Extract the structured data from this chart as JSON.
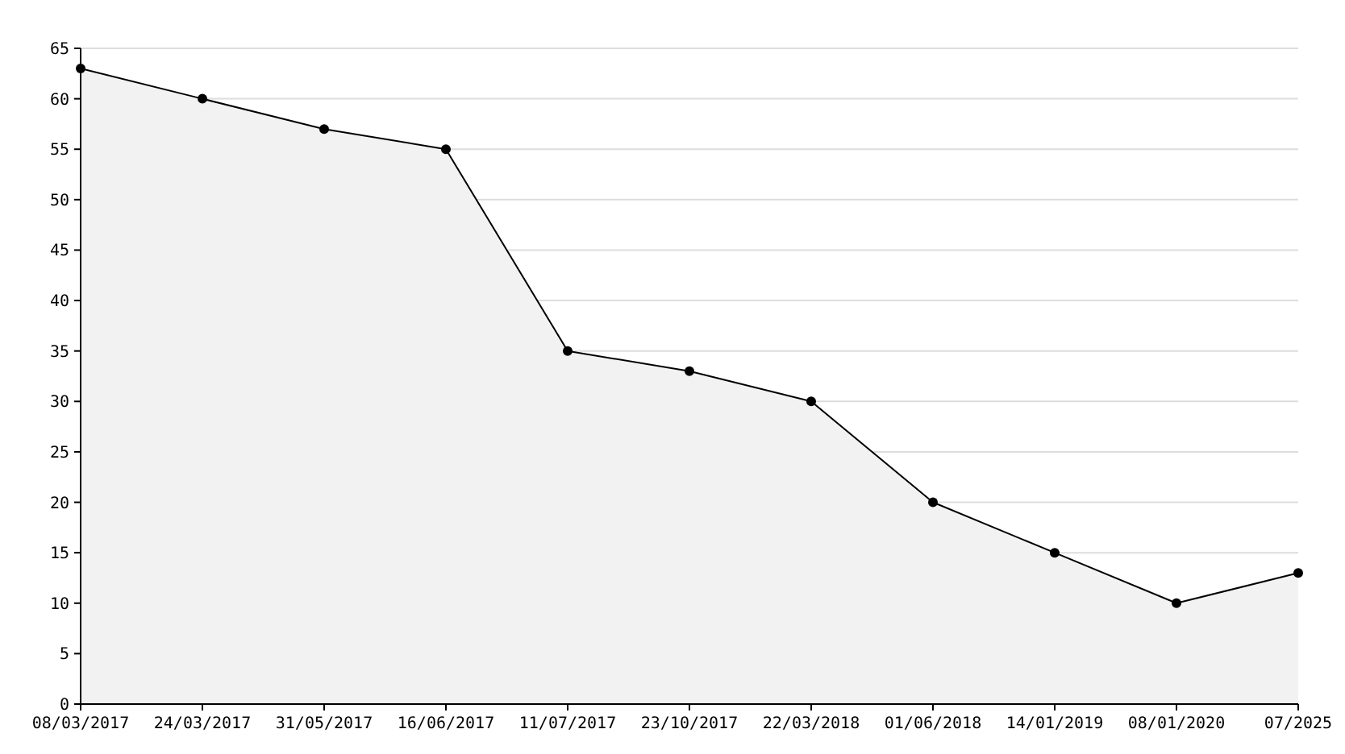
{
  "chart_data": {
    "type": "area",
    "categories": [
      "08/03/2017",
      "24/03/2017",
      "31/05/2017",
      "16/06/2017",
      "11/07/2017",
      "23/10/2017",
      "22/03/2018",
      "01/06/2018",
      "14/01/2019",
      "08/01/2020",
      "07/2025"
    ],
    "series": [
      {
        "color": "#000000",
        "values": [
          63,
          60,
          57,
          55,
          35,
          33,
          30,
          20,
          15,
          10,
          13
        ]
      }
    ],
    "ylim": [
      0,
      65
    ],
    "yticks": [
      0,
      5,
      10,
      15,
      20,
      25,
      30,
      35,
      40,
      45,
      50,
      55,
      60,
      65
    ],
    "grid": "y",
    "marker": "circle",
    "line_style": "solid"
  }
}
